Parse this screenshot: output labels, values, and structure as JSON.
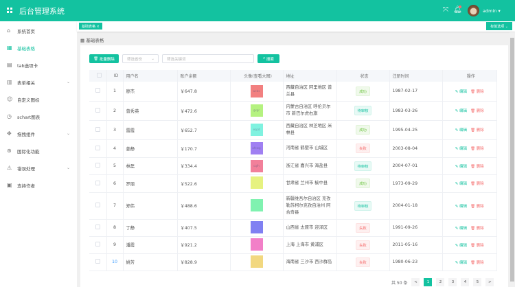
{
  "header": {
    "title": "后台管理系统",
    "user": "admin",
    "icons": [
      "grid-icon",
      "fullscreen-icon",
      "bell-icon"
    ]
  },
  "sidebar": {
    "items": [
      {
        "label": "系统首页",
        "icon": "home-icon"
      },
      {
        "label": "基础表格",
        "icon": "grid-icon",
        "active": true
      },
      {
        "label": "tab选项卡",
        "icon": "document-icon"
      },
      {
        "label": "表单相关",
        "icon": "form-icon",
        "expandable": true
      },
      {
        "label": "自定义图标",
        "icon": "smile-icon"
      },
      {
        "label": "schart图表",
        "icon": "clock-icon"
      },
      {
        "label": "拖拽组件",
        "icon": "move-icon",
        "expandable": true
      },
      {
        "label": "国际化功能",
        "icon": "globe-icon"
      },
      {
        "label": "错误处理",
        "icon": "warning-icon",
        "expandable": true
      },
      {
        "label": "支持作者",
        "icon": "book-icon"
      }
    ]
  },
  "tags": {
    "current": "基础表格",
    "options": "标签选项"
  },
  "breadcrumb": "基础表格",
  "toolbar": {
    "batch_delete": "批量删除",
    "province_placeholder": "筛选省份",
    "keyword_placeholder": "筛选关键词",
    "search": "搜索"
  },
  "table": {
    "headers": [
      "ID",
      "用户名",
      "账户余额",
      "头像(查看大图)",
      "地址",
      "状态",
      "注册时间",
      "操作"
    ],
    "edit": "编辑",
    "delete": "删除",
    "rows": [
      {
        "id": "1",
        "name": "廖杰",
        "balance": "￥647.8",
        "avatar": "wcbx",
        "color": "#f28080",
        "address": "西藏自治区 阿里地区 普兰县",
        "status": "成功",
        "type": "ok",
        "date": "1987-02-17"
      },
      {
        "id": "2",
        "name": "曾秀英",
        "balance": "￥472.6",
        "avatar": "gxgr",
        "color": "#b5f280",
        "address": "内蒙古自治区 呼伦贝尔市 新巴尔虎右旗",
        "status": "待审核",
        "type": "pend",
        "date": "1983-03-26"
      },
      {
        "id": "3",
        "name": "雷霞",
        "balance": "￥652.7",
        "avatar": "eqcd",
        "color": "#80f2e0",
        "address": "西藏自治区 林芝地区 米林县",
        "status": "成功",
        "type": "ok",
        "date": "1995-04-25"
      },
      {
        "id": "4",
        "name": "姜静",
        "balance": "￥170.7",
        "avatar": "afewg",
        "color": "#a080f2",
        "address": "河南省 鹤壁市 山城区",
        "status": "失败",
        "type": "fail",
        "date": "2003-08-04"
      },
      {
        "id": "5",
        "name": "林磊",
        "balance": "￥334.4",
        "avatar": "cqfh",
        "color": "#f2809a",
        "address": "浙江省 嘉兴市 海盐县",
        "status": "待审核",
        "type": "pend",
        "date": "2004-07-01"
      },
      {
        "id": "6",
        "name": "罗丽",
        "balance": "￥522.6",
        "avatar": "",
        "color": "#e6f280",
        "address": "甘肃省 兰州市 榆中县",
        "status": "成功",
        "type": "ok",
        "date": "1973-09-29"
      },
      {
        "id": "7",
        "name": "郑伟",
        "balance": "￥488.6",
        "avatar": "",
        "color": "#80f2b0",
        "address": "新疆维吾尔自治区 克孜勒苏柯尔克孜自治州 阿合奇县",
        "status": "待审核",
        "type": "pend",
        "date": "2004-01-18"
      },
      {
        "id": "8",
        "name": "丁静",
        "balance": "￥407.5",
        "avatar": "",
        "color": "#8080f2",
        "address": "山西省 太原市 迎泽区",
        "status": "失败",
        "type": "fail",
        "date": "1991-09-26"
      },
      {
        "id": "9",
        "name": "潘霞",
        "balance": "￥921.2",
        "avatar": "",
        "color": "#f280c8",
        "address": "上海 上海市 黄浦区",
        "status": "失败",
        "type": "fail",
        "date": "2011-05-16"
      },
      {
        "id": "10",
        "name": "姚芳",
        "balance": "￥828.9",
        "avatar": "",
        "color": "#f2d880",
        "address": "海南省 三沙市 西沙群岛",
        "status": "失败",
        "type": "fail",
        "date": "1980-06-23"
      }
    ]
  },
  "pagination": {
    "total": "共 50 条",
    "pages": [
      "1",
      "2",
      "3",
      "4",
      "5"
    ],
    "current": "1",
    "prev": "<",
    "next": ">"
  },
  "colors": {
    "brand": "#13c2a0",
    "danger": "#f56c6c",
    "success": "#67c23a"
  }
}
